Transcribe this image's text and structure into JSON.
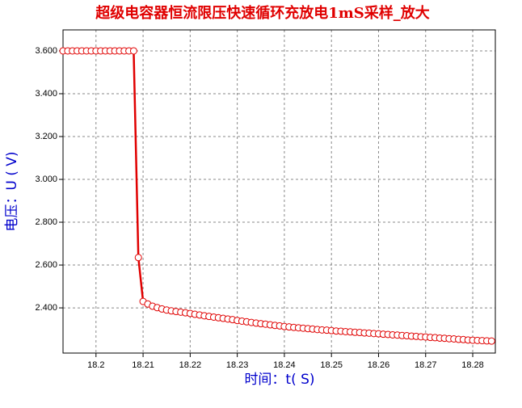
{
  "chart_data": {
    "type": "line",
    "title": "超级电容器恒流限压快速循环充放电1mS采样_放大",
    "x_label": "时间：t( S)",
    "y_label": "电压：U ( V)",
    "x": [
      18.193,
      18.194,
      18.195,
      18.196,
      18.197,
      18.198,
      18.199,
      18.2,
      18.201,
      18.202,
      18.203,
      18.204,
      18.205,
      18.206,
      18.207,
      18.208,
      18.209,
      18.21,
      18.211,
      18.212,
      18.213,
      18.214,
      18.215,
      18.216,
      18.217,
      18.218,
      18.219,
      18.22,
      18.221,
      18.222,
      18.223,
      18.224,
      18.225,
      18.226,
      18.227,
      18.228,
      18.229,
      18.23,
      18.231,
      18.232,
      18.233,
      18.234,
      18.235,
      18.236,
      18.237,
      18.238,
      18.239,
      18.24,
      18.241,
      18.242,
      18.243,
      18.244,
      18.245,
      18.246,
      18.247,
      18.248,
      18.249,
      18.25,
      18.251,
      18.252,
      18.253,
      18.254,
      18.255,
      18.256,
      18.257,
      18.258,
      18.259,
      18.26,
      18.261,
      18.262,
      18.263,
      18.264,
      18.265,
      18.266,
      18.267,
      18.268,
      18.269,
      18.27,
      18.271,
      18.272,
      18.273,
      18.274,
      18.275,
      18.276,
      18.277,
      18.278,
      18.279,
      18.28,
      18.281,
      18.282,
      18.283,
      18.284
    ],
    "series": [
      {
        "color": "#e00000",
        "marker_fill": "#ffffff",
        "values": [
          3.6,
          3.6,
          3.6,
          3.6,
          3.6,
          3.6,
          3.6,
          3.6,
          3.6,
          3.6,
          3.6,
          3.6,
          3.6,
          3.6,
          3.6,
          3.6,
          2.635,
          2.43,
          2.418,
          2.408,
          2.401,
          2.395,
          2.39,
          2.386,
          2.383,
          2.38,
          2.377,
          2.374,
          2.37,
          2.367,
          2.363,
          2.36,
          2.357,
          2.354,
          2.351,
          2.348,
          2.345,
          2.341,
          2.338,
          2.335,
          2.332,
          2.329,
          2.326,
          2.324,
          2.321,
          2.318,
          2.316,
          2.313,
          2.311,
          2.309,
          2.307,
          2.305,
          2.303,
          2.301,
          2.299,
          2.297,
          2.296,
          2.294,
          2.292,
          2.291,
          2.289,
          2.288,
          2.286,
          2.285,
          2.283,
          2.282,
          2.28,
          2.279,
          2.277,
          2.276,
          2.274,
          2.273,
          2.271,
          2.27,
          2.268,
          2.267,
          2.265,
          2.264,
          2.262,
          2.261,
          2.259,
          2.258,
          2.256,
          2.255,
          2.253,
          2.252,
          2.25,
          2.249,
          2.248,
          2.247,
          2.246,
          2.245
        ]
      }
    ],
    "xlim": [
      18.193,
      18.2848
    ],
    "ylim": [
      2.189,
      3.698
    ],
    "xticks": [
      18.2,
      18.21,
      18.22,
      18.23,
      18.24,
      18.25,
      18.26,
      18.27,
      18.28
    ],
    "yticks": [
      {
        "value": 2.4,
        "label": "2.400"
      },
      {
        "value": 2.6,
        "label": "2.600"
      },
      {
        "value": 2.8,
        "label": "2.800"
      },
      {
        "value": 3.0,
        "label": "3.000"
      },
      {
        "value": 3.2,
        "label": "3.200"
      },
      {
        "value": 3.4,
        "label": "3.400"
      },
      {
        "value": 3.6,
        "label": "3.600"
      }
    ],
    "grid": true
  }
}
